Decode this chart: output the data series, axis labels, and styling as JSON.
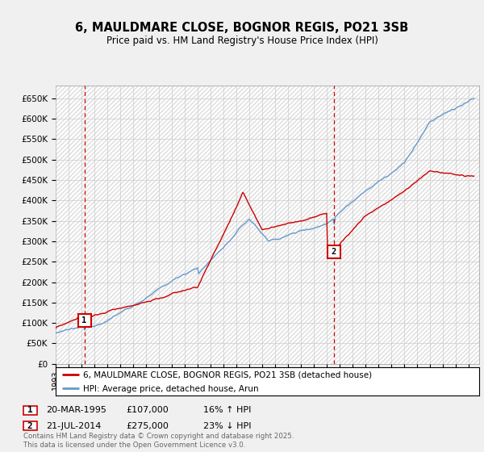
{
  "title": "6, MAULDMARE CLOSE, BOGNOR REGIS, PO21 3SB",
  "subtitle": "Price paid vs. HM Land Registry's House Price Index (HPI)",
  "ylabel_ticks": [
    "£0",
    "£50K",
    "£100K",
    "£150K",
    "£200K",
    "£250K",
    "£300K",
    "£350K",
    "£400K",
    "£450K",
    "£500K",
    "£550K",
    "£600K",
    "£650K"
  ],
  "ytick_values": [
    0,
    50000,
    100000,
    150000,
    200000,
    250000,
    300000,
    350000,
    400000,
    450000,
    500000,
    550000,
    600000,
    650000
  ],
  "ylim": [
    0,
    680000
  ],
  "xlim_start": 1993.0,
  "xlim_end": 2025.8,
  "legend_line1": "6, MAULDMARE CLOSE, BOGNOR REGIS, PO21 3SB (detached house)",
  "legend_line2": "HPI: Average price, detached house, Arun",
  "marker1_label": "1",
  "marker1_date": "20-MAR-1995",
  "marker1_price": "£107,000",
  "marker1_hpi": "16% ↑ HPI",
  "marker1_x": 1995.22,
  "marker1_y": 107000,
  "marker2_label": "2",
  "marker2_date": "21-JUL-2014",
  "marker2_price": "£275,000",
  "marker2_hpi": "23% ↓ HPI",
  "marker2_x": 2014.55,
  "marker2_y": 275000,
  "color_property": "#cc0000",
  "color_hpi": "#6699cc",
  "color_vline": "#cc0000",
  "footer": "Contains HM Land Registry data © Crown copyright and database right 2025.\nThis data is licensed under the Open Government Licence v3.0.",
  "background_color": "#f0f0f0",
  "plot_bg": "#ffffff",
  "grid_color": "#cccccc",
  "hatch_color": "#dddddd"
}
